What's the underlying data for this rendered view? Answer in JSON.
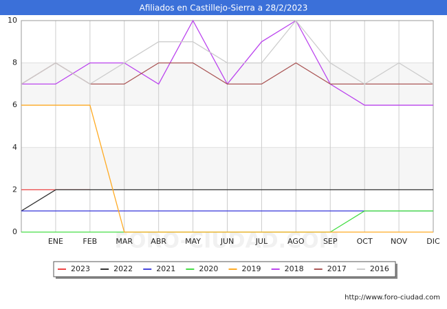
{
  "chart_data": {
    "type": "line",
    "title": "Afiliados en Castillejo-Sierra a 28/2/2023",
    "watermark": "FORO-CIUDAD.COM",
    "source": "http://www.foro-ciudad.com",
    "categories": [
      null,
      "ENE",
      "FEB",
      "MAR",
      "ABR",
      "MAY",
      "JUN",
      "JUL",
      "AGO",
      "SEP",
      "OCT",
      "NOV",
      "DIC"
    ],
    "ylim": [
      0,
      10
    ],
    "yticks": [
      0,
      2,
      4,
      6,
      8,
      10
    ],
    "grid": true,
    "legend": "bottom",
    "series": [
      {
        "name": "2023",
        "color": "#ee4444",
        "values": [
          2,
          2,
          2,
          null,
          null,
          null,
          null,
          null,
          null,
          null,
          null,
          null,
          null
        ]
      },
      {
        "name": "2022",
        "color": "#333333",
        "values": [
          1,
          2,
          2,
          2,
          2,
          2,
          2,
          2,
          2,
          2,
          2,
          2,
          2
        ]
      },
      {
        "name": "2021",
        "color": "#4444dd",
        "values": [
          1,
          1,
          1,
          1,
          1,
          1,
          1,
          1,
          1,
          1,
          1,
          1,
          1
        ]
      },
      {
        "name": "2020",
        "color": "#44dd44",
        "values": [
          0,
          0,
          0,
          0,
          0,
          0,
          0,
          0,
          0,
          0,
          1,
          1,
          1
        ]
      },
      {
        "name": "2019",
        "color": "#ffaa22",
        "values": [
          6,
          6,
          6,
          0,
          0,
          0,
          0,
          0,
          0,
          0,
          0,
          0,
          0
        ]
      },
      {
        "name": "2018",
        "color": "#bb44ee",
        "values": [
          7,
          7,
          8,
          8,
          7,
          10,
          7,
          9,
          10,
          7,
          6,
          6,
          6
        ]
      },
      {
        "name": "2017",
        "color": "#aa5555",
        "values": [
          7,
          8,
          7,
          7,
          8,
          8,
          7,
          7,
          8,
          7,
          7,
          7,
          7
        ]
      },
      {
        "name": "2016",
        "color": "#cccccc",
        "values": [
          7,
          8,
          7,
          8,
          9,
          9,
          8,
          8,
          10,
          8,
          7,
          8,
          7
        ]
      }
    ]
  }
}
